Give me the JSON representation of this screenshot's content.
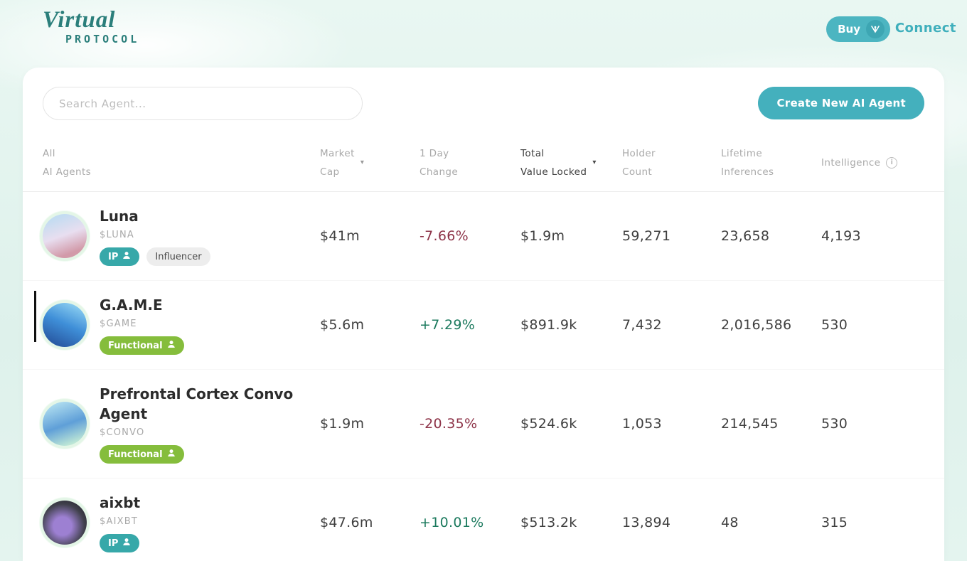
{
  "header": {
    "logo_line1": "Virtual",
    "logo_line2": "PROTOCOL",
    "buy_label": "Buy",
    "connect_label": "Connect"
  },
  "toolbar": {
    "search_placeholder": "Search Agent...",
    "create_button_label": "Create New AI Agent"
  },
  "table": {
    "filter_line1": "All",
    "filter_line2": "AI Agents",
    "columns": {
      "market_cap": {
        "line1": "Market",
        "line2": "Cap",
        "sort_caret": "▾"
      },
      "day_change": {
        "line1": "1 Day",
        "line2": "Change"
      },
      "tvl": {
        "line1": "Total",
        "line2": "Value Locked",
        "sort_caret": "▾",
        "active": true
      },
      "holders": {
        "line1": "Holder",
        "line2": "Count"
      },
      "inferences": {
        "line1": "Lifetime",
        "line2": "Inferences"
      },
      "intelligence": {
        "line1": "Intelligence",
        "info_icon": "i"
      }
    },
    "rows": [
      {
        "name": "Luna",
        "ticker": "$LUNA",
        "badges": [
          {
            "label": "IP",
            "type": "teal",
            "icon": "person"
          },
          {
            "label": "Influencer",
            "type": "gray"
          }
        ],
        "market_cap": "$41m",
        "day_change": "-7.66%",
        "tvl": "$1.9m",
        "holders": "59,271",
        "inferences": "23,658",
        "intelligence": "4,193"
      },
      {
        "name": "G.A.M.E",
        "ticker": "$GAME",
        "has_cursor_bar": true,
        "badges": [
          {
            "label": "Functional",
            "type": "green",
            "icon": "person"
          }
        ],
        "market_cap": "$5.6m",
        "day_change": "+7.29%",
        "tvl": "$891.9k",
        "holders": "7,432",
        "inferences": "2,016,586",
        "intelligence": "530"
      },
      {
        "name": "Prefrontal Cortex Convo Agent",
        "ticker": "$CONVO",
        "badges": [
          {
            "label": "Functional",
            "type": "green",
            "icon": "person"
          }
        ],
        "market_cap": "$1.9m",
        "day_change": "-20.35%",
        "tvl": "$524.6k",
        "holders": "1,053",
        "inferences": "214,545",
        "intelligence": "530"
      },
      {
        "name": "aixbt",
        "ticker": "$AIXBT",
        "badges": [
          {
            "label": "IP",
            "type": "teal",
            "icon": "person"
          }
        ],
        "market_cap": "$47.6m",
        "day_change": "+10.01%",
        "tvl": "$513.2k",
        "holders": "13,894",
        "inferences": "48",
        "intelligence": "315"
      }
    ]
  },
  "colors": {
    "accent_teal": "#44b0bd",
    "logo_teal": "#2b7f7b",
    "badge_teal": "#37a8a9",
    "badge_green": "#85bd3c",
    "badge_gray": "#ededed",
    "change_up": "#1c7a5e",
    "change_down": "#8d3348",
    "background_mint": "#def1eb"
  }
}
